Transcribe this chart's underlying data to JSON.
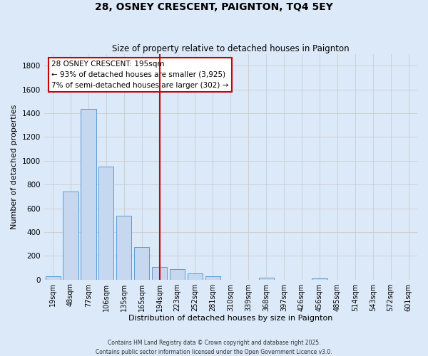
{
  "title": "28, OSNEY CRESCENT, PAIGNTON, TQ4 5EY",
  "subtitle": "Size of property relative to detached houses in Paignton",
  "xlabel": "Distribution of detached houses by size in Paignton",
  "ylabel": "Number of detached properties",
  "bar_labels": [
    "19sqm",
    "48sqm",
    "77sqm",
    "106sqm",
    "135sqm",
    "165sqm",
    "194sqm",
    "223sqm",
    "252sqm",
    "281sqm",
    "310sqm",
    "339sqm",
    "368sqm",
    "397sqm",
    "426sqm",
    "456sqm",
    "485sqm",
    "514sqm",
    "543sqm",
    "572sqm",
    "601sqm"
  ],
  "bar_values": [
    25,
    740,
    1435,
    950,
    535,
    275,
    105,
    90,
    50,
    30,
    0,
    0,
    15,
    0,
    0,
    10,
    0,
    0,
    0,
    0,
    0
  ],
  "bar_color": "#c5d8f0",
  "bar_edge_color": "#5b9bd5",
  "vline_x_index": 6,
  "vline_color": "#cc0000",
  "annotation_line1": "28 OSNEY CRESCENT: 195sqm",
  "annotation_line2": "← 93% of detached houses are smaller (3,925)",
  "annotation_line3": "7% of semi-detached houses are larger (302) →",
  "annotation_box_color": "#ffffff",
  "annotation_box_edge": "#cc0000",
  "ylim": [
    0,
    1900
  ],
  "yticks": [
    0,
    200,
    400,
    600,
    800,
    1000,
    1200,
    1400,
    1600,
    1800
  ],
  "grid_color": "#cccccc",
  "background_color": "#dce9f8",
  "footer_line1": "Contains HM Land Registry data © Crown copyright and database right 2025.",
  "footer_line2": "Contains public sector information licensed under the Open Government Licence v3.0."
}
